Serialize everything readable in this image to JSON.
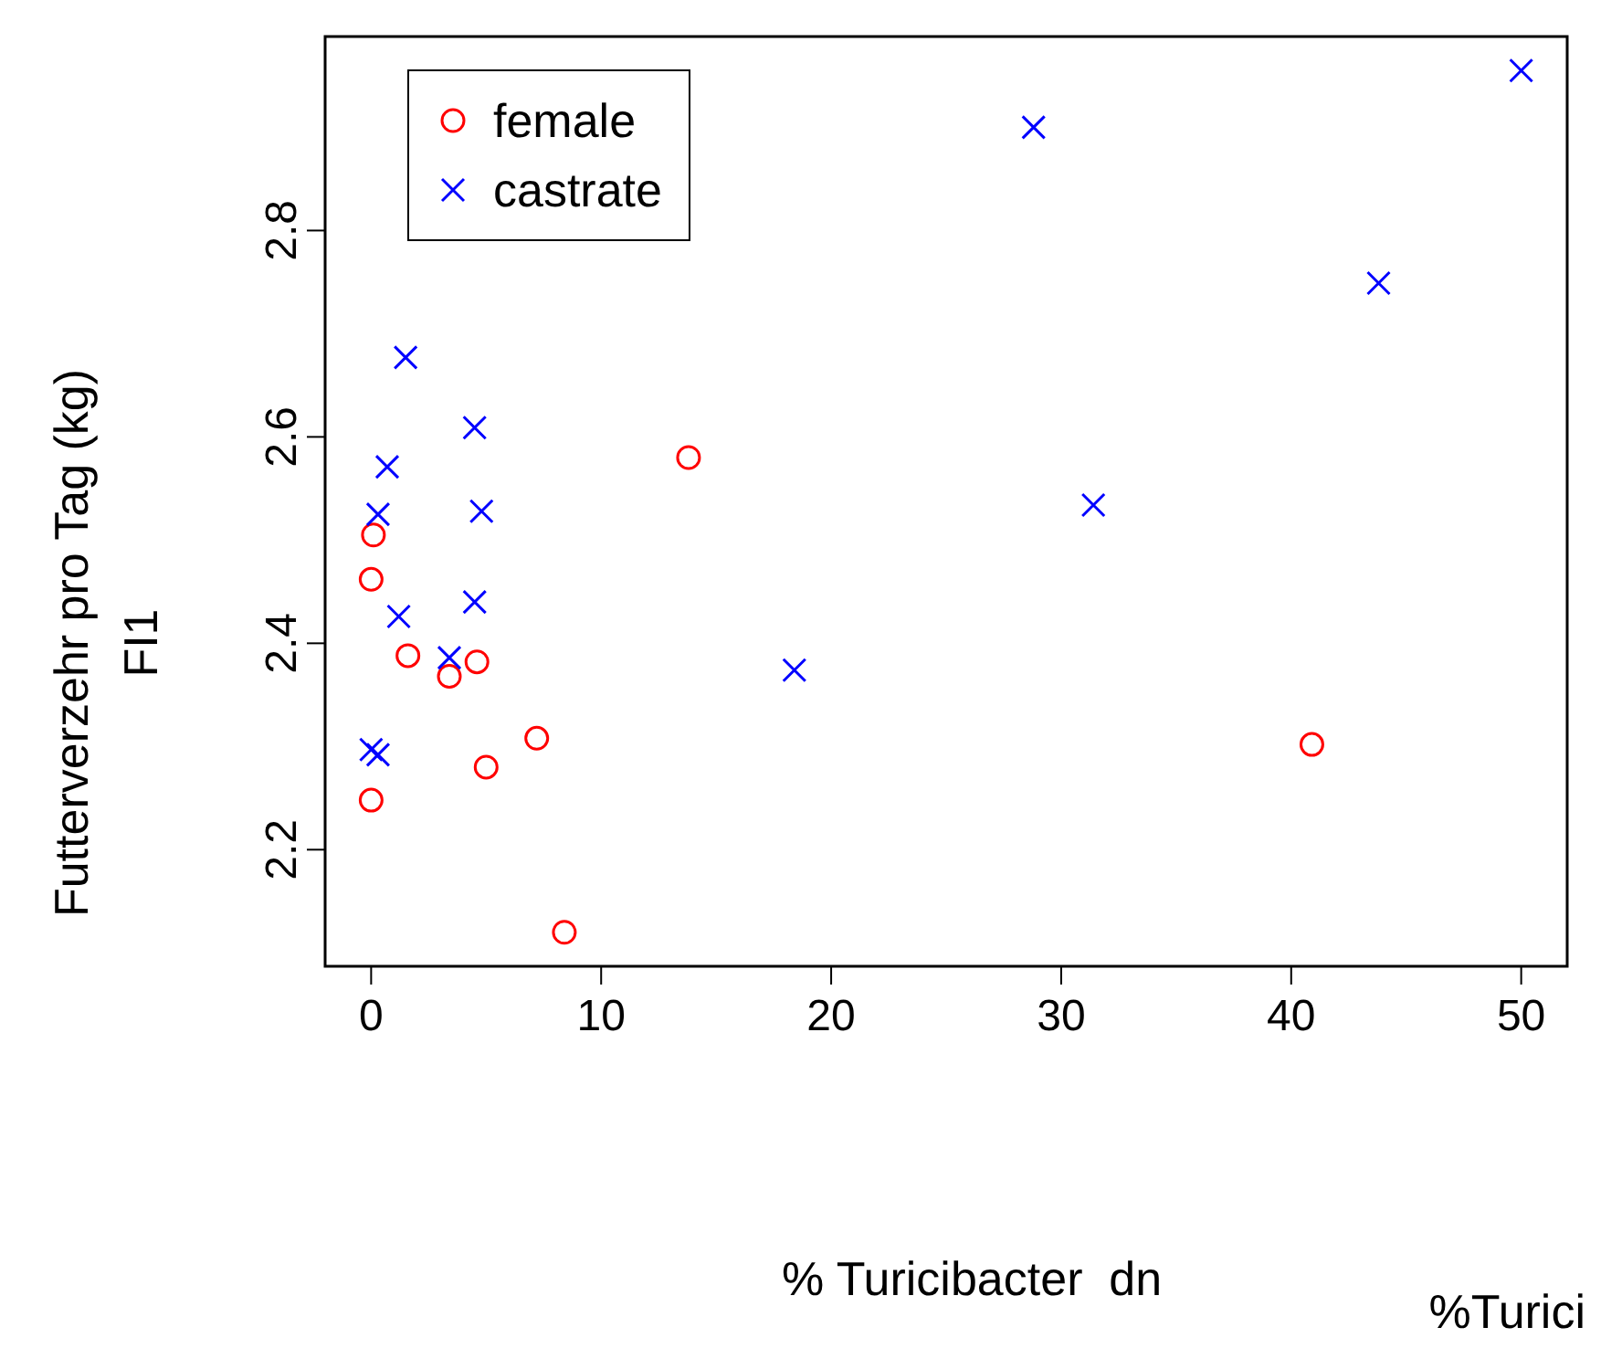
{
  "chart_data": {
    "type": "scatter",
    "xlabel": "% Turicibacter  dn",
    "ylabel": "Futterverzehr pro Tag (kg)\nFI1",
    "annotations": [
      "%Turici"
    ],
    "xlim": [
      -2,
      52
    ],
    "ylim": [
      2.087,
      2.988
    ],
    "xticks": [
      0,
      10,
      20,
      30,
      40,
      50
    ],
    "yticks": [
      2.2,
      2.4,
      2.6,
      2.8
    ],
    "legend": "top left",
    "grid": false,
    "series": [
      {
        "name": "female",
        "color": "#ff0000",
        "marker": "circle",
        "x": [
          13.8,
          0.1,
          0,
          1.6,
          3.4,
          4.6,
          7.2,
          5.0,
          0,
          8.4,
          40.9
        ],
        "values": [
          2.58,
          2.505,
          2.462,
          2.388,
          2.368,
          2.382,
          2.308,
          2.28,
          2.248,
          2.12,
          2.302
        ]
      },
      {
        "name": "castrate",
        "color": "#0000ff",
        "marker": "cross",
        "x": [
          50.0,
          28.8,
          43.8,
          1.5,
          4.5,
          0.7,
          0.3,
          4.8,
          31.4,
          1.2,
          4.5,
          3.4,
          18.4,
          0,
          0.3
        ],
        "values": [
          2.955,
          2.9,
          2.749,
          2.677,
          2.609,
          2.571,
          2.525,
          2.528,
          2.534,
          2.426,
          2.44,
          2.386,
          2.374,
          2.297,
          2.292
        ]
      }
    ]
  }
}
